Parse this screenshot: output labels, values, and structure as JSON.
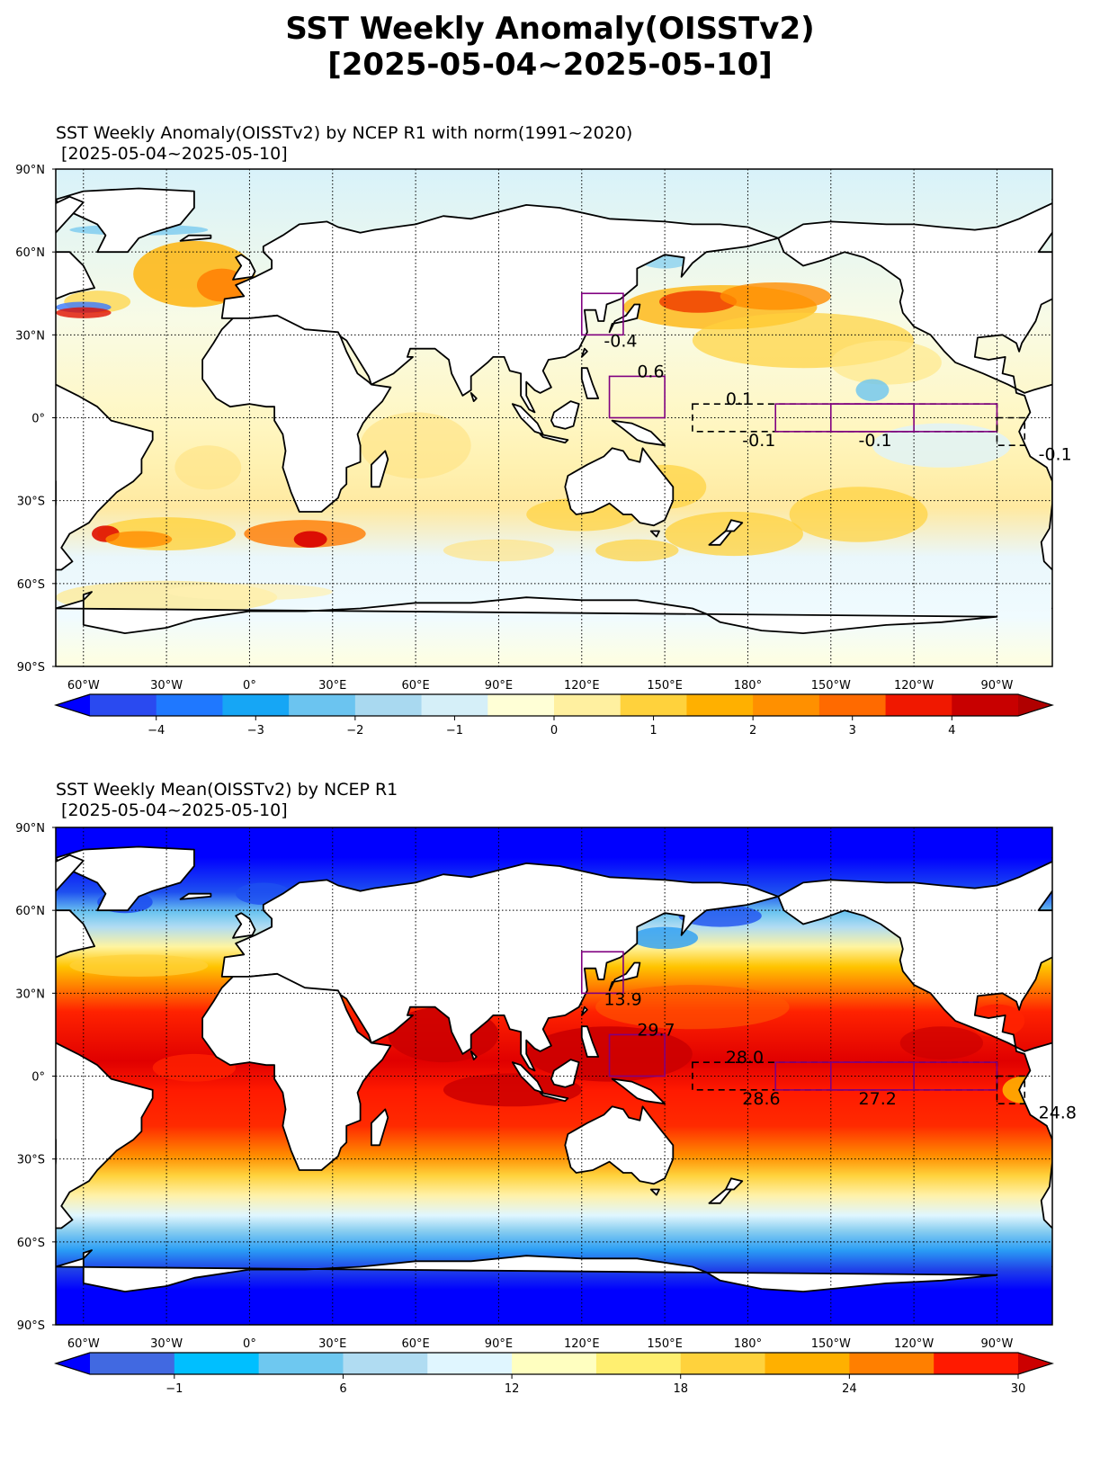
{
  "figure": {
    "title_line1": "SST Weekly Anomaly(OISSTv2)",
    "title_line2": "[2025-05-04~2025-05-10]"
  },
  "anomaly_panel": {
    "title_line1": "SST Weekly Anomaly(OISSTv2) by NCEP R1 with norm(1991~2020)",
    "title_line2": " [2025-05-04~2025-05-10]",
    "lat_ticks": [
      "90°N",
      "60°N",
      "30°N",
      "0°",
      "30°S",
      "60°S",
      "90°S"
    ],
    "lon_ticks": [
      "60°W",
      "30°W",
      "0°",
      "30°E",
      "60°E",
      "90°E",
      "120°E",
      "150°E",
      "180°",
      "150°W",
      "120°W",
      "90°W"
    ],
    "colorbar": {
      "colors": [
        "#0000ff",
        "#2a4af0",
        "#1f78ff",
        "#16a6f5",
        "#6bc4f0",
        "#a9d9f0",
        "#d5eff8",
        "#ffffd6",
        "#fff0a0",
        "#ffd23c",
        "#ffb000",
        "#ff9000",
        "#ff6a00",
        "#f01800",
        "#c80000",
        "#b00000"
      ],
      "ticks": [
        "−4",
        "−3",
        "−2",
        "−1",
        "0",
        "1",
        "2",
        "3",
        "4"
      ]
    },
    "box_labels": [
      "-0.4",
      "0.6",
      "0.1",
      "-0.1",
      "-0.1",
      "-0.1"
    ]
  },
  "mean_panel": {
    "title_line1": "SST Weekly Mean(OISSTv2) by NCEP R1",
    "title_line2": " [2025-05-04~2025-05-10]",
    "lat_ticks": [
      "90°N",
      "60°N",
      "30°N",
      "0°",
      "30°S",
      "60°S",
      "90°S"
    ],
    "lon_ticks": [
      "60°W",
      "30°W",
      "0°",
      "30°E",
      "60°E",
      "90°E",
      "120°E",
      "150°E",
      "180°",
      "150°W",
      "120°W",
      "90°W"
    ],
    "colorbar": {
      "colors": [
        "#0000ff",
        "#4169e1",
        "#00bfff",
        "#6ec8f0",
        "#b0dcf2",
        "#e0f6ff",
        "#ffffc0",
        "#ffef70",
        "#ffd23c",
        "#ffb000",
        "#ff7f00",
        "#ff1a00",
        "#cc0000"
      ],
      "ticks": [
        "−1",
        "6",
        "12",
        "18",
        "24",
        "30"
      ]
    },
    "box_labels": [
      "13.9",
      "29.7",
      "28.0",
      "28.6",
      "27.2",
      "24.8"
    ]
  },
  "chart_data": [
    {
      "type": "heatmap",
      "title": "SST Weekly Anomaly(OISSTv2) by NCEP R1 with norm(1991~2020) [2025-05-04~2025-05-10]",
      "xticks": [
        "60°W",
        "30°W",
        "0°",
        "30°E",
        "60°E",
        "90°E",
        "120°E",
        "150°E",
        "180°",
        "150°W",
        "120°W",
        "90°W"
      ],
      "yticks": [
        "90°N",
        "60°N",
        "30°N",
        "0°",
        "30°S",
        "60°S",
        "90°S"
      ],
      "colorbar_range": [
        -5,
        5
      ],
      "colorbar_ticks": [
        -4,
        -3,
        -2,
        -1,
        0,
        1,
        2,
        3,
        4
      ],
      "grid": true,
      "region_values": [
        {
          "label": "-0.4",
          "lon_range": [
            120,
            135
          ],
          "lat_range": [
            30,
            45
          ]
        },
        {
          "label": "0.6",
          "lon_range": [
            130,
            150
          ],
          "lat_range": [
            0,
            15
          ]
        },
        {
          "label": "0.1",
          "lon_range": [
            -170,
            -120
          ],
          "lat_range": [
            -5,
            5
          ]
        },
        {
          "label": "-0.1",
          "lon_range": [
            -170,
            -120
          ],
          "lat_range": [
            -5,
            5
          ]
        },
        {
          "label": "-0.1",
          "lon_range": [
            -120,
            -90
          ],
          "lat_range": [
            -5,
            5
          ]
        },
        {
          "label": "-0.1",
          "lon_range": [
            -90,
            -80
          ],
          "lat_range": [
            -10,
            0
          ]
        }
      ]
    },
    {
      "type": "heatmap",
      "title": "SST Weekly Mean(OISSTv2) by NCEP R1 [2025-05-04~2025-05-10]",
      "xticks": [
        "60°W",
        "30°W",
        "0°",
        "30°E",
        "60°E",
        "90°E",
        "120°E",
        "150°E",
        "180°",
        "150°W",
        "120°W",
        "90°W"
      ],
      "yticks": [
        "90°N",
        "60°N",
        "30°N",
        "0°",
        "30°S",
        "60°S",
        "90°S"
      ],
      "colorbar_range": [
        -2,
        34
      ],
      "colorbar_ticks": [
        -1,
        6,
        12,
        18,
        24,
        30
      ],
      "grid": true,
      "region_values": [
        {
          "label": "13.9",
          "lon_range": [
            120,
            135
          ],
          "lat_range": [
            30,
            45
          ]
        },
        {
          "label": "29.7",
          "lon_range": [
            130,
            150
          ],
          "lat_range": [
            0,
            15
          ]
        },
        {
          "label": "28.0",
          "lon_range": [
            -170,
            -120
          ],
          "lat_range": [
            -5,
            5
          ]
        },
        {
          "label": "28.6",
          "lon_range": [
            160,
            -150
          ],
          "lat_range": [
            -5,
            5
          ]
        },
        {
          "label": "27.2",
          "lon_range": [
            -150,
            -90
          ],
          "lat_range": [
            -5,
            5
          ]
        },
        {
          "label": "24.8",
          "lon_range": [
            -90,
            -80
          ],
          "lat_range": [
            -10,
            0
          ]
        }
      ]
    }
  ]
}
